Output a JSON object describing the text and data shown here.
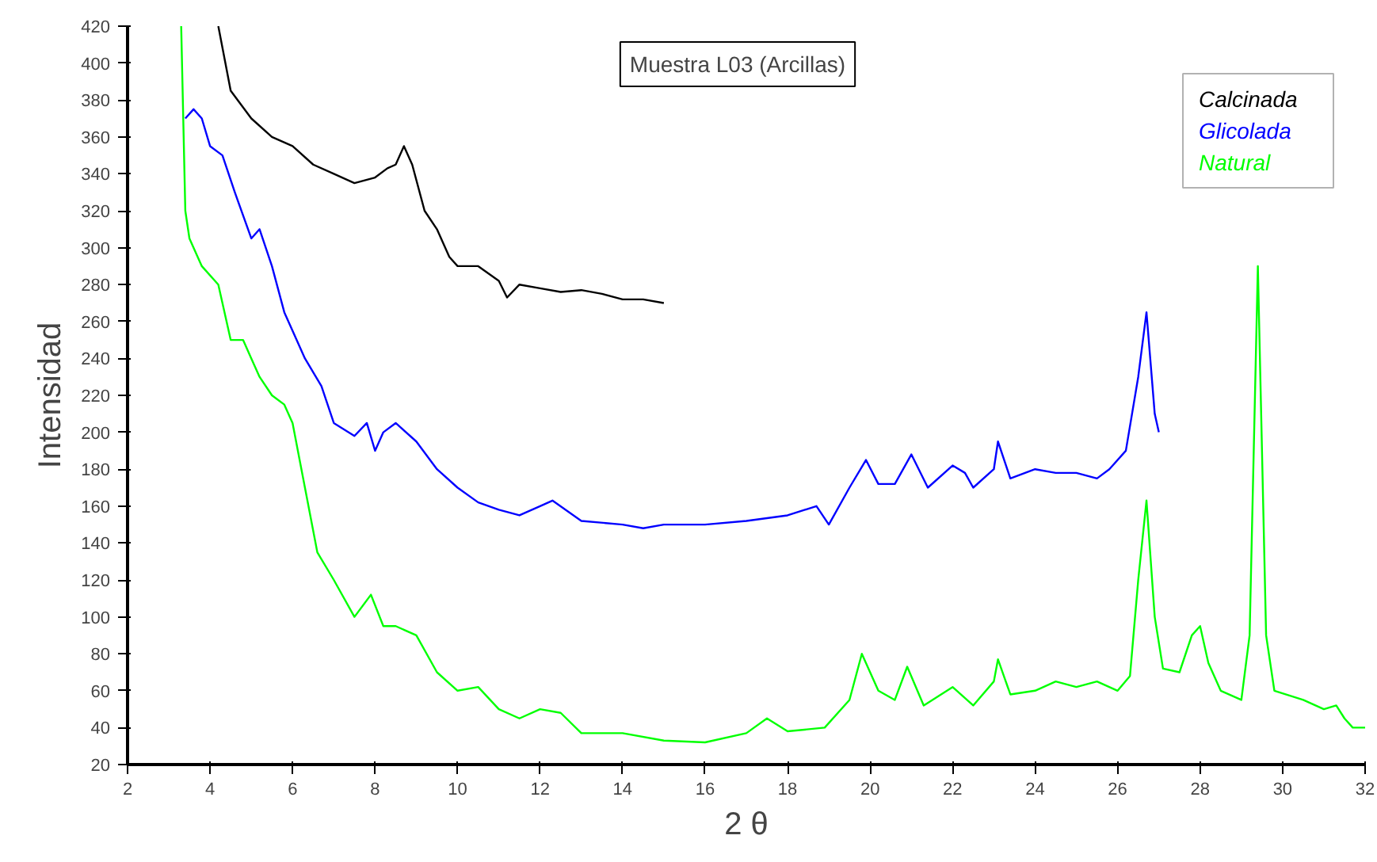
{
  "chart_data": {
    "type": "line",
    "title": "Muestra L03 (Arcillas)",
    "xlabel": "2 θ",
    "ylabel": "Intensidad",
    "xlim": [
      2,
      32
    ],
    "ylim": [
      20,
      420
    ],
    "xticks": [
      2,
      4,
      6,
      8,
      10,
      12,
      14,
      16,
      18,
      20,
      22,
      24,
      26,
      28,
      30,
      32
    ],
    "yticks": [
      20,
      40,
      60,
      80,
      100,
      120,
      140,
      160,
      180,
      200,
      220,
      240,
      260,
      280,
      300,
      320,
      340,
      360,
      380,
      400,
      420
    ],
    "grid": false,
    "legend": "top right",
    "marker": "none",
    "line_style": "solid",
    "series": [
      {
        "name": "Calcinada",
        "color": "#000000",
        "x": [
          4.2,
          4.5,
          5,
          5.5,
          6,
          6.5,
          7,
          7.5,
          8,
          8.3,
          8.5,
          8.7,
          8.9,
          9.2,
          9.5,
          9.8,
          10,
          10.5,
          11,
          11.2,
          11.5,
          12,
          12.5,
          13,
          13.5,
          14,
          14.5,
          15
        ],
        "values": [
          420,
          385,
          370,
          360,
          355,
          345,
          340,
          335,
          338,
          343,
          345,
          355,
          345,
          320,
          310,
          295,
          290,
          290,
          282,
          273,
          280,
          278,
          276,
          277,
          275,
          272,
          272,
          270
        ]
      },
      {
        "name": "Glicolada",
        "color": "#0000ff",
        "x": [
          3.4,
          3.6,
          3.8,
          4,
          4.3,
          4.6,
          5,
          5.2,
          5.5,
          5.8,
          6,
          6.3,
          6.7,
          7,
          7.5,
          7.8,
          8,
          8.2,
          8.5,
          9,
          9.5,
          10,
          10.5,
          11,
          11.5,
          12,
          12.3,
          13,
          14,
          14.5,
          15,
          16,
          17,
          18,
          18.7,
          19,
          19.5,
          19.9,
          20.2,
          20.6,
          21,
          21.4,
          22,
          22.3,
          22.5,
          23,
          23.1,
          23.4,
          24,
          24.5,
          25,
          25.5,
          25.8,
          26.2,
          26.5,
          26.7,
          26.9,
          27
        ],
        "values": [
          370,
          375,
          370,
          355,
          350,
          330,
          305,
          310,
          290,
          265,
          255,
          240,
          225,
          205,
          198,
          205,
          190,
          200,
          205,
          195,
          180,
          170,
          162,
          158,
          155,
          160,
          163,
          152,
          150,
          148,
          150,
          150,
          152,
          155,
          160,
          150,
          170,
          185,
          172,
          172,
          188,
          170,
          182,
          178,
          170,
          180,
          195,
          175,
          180,
          178,
          178,
          175,
          180,
          190,
          230,
          265,
          210,
          200
        ]
      },
      {
        "name": "Natural",
        "color": "#00ff00",
        "x": [
          3.3,
          3.4,
          3.5,
          3.8,
          4.2,
          4.5,
          4.8,
          5,
          5.2,
          5.5,
          5.8,
          6,
          6.3,
          6.6,
          7,
          7.5,
          7.9,
          8.2,
          8.5,
          9,
          9.5,
          10,
          10.5,
          11,
          11.5,
          12,
          12.5,
          13,
          14,
          15,
          16,
          17,
          17.5,
          18,
          18.9,
          19.5,
          19.8,
          20.2,
          20.6,
          20.9,
          21.3,
          22,
          22.5,
          23,
          23.1,
          23.4,
          24,
          24.5,
          25,
          25.5,
          26,
          26.3,
          26.5,
          26.7,
          26.9,
          27.1,
          27.5,
          27.8,
          28,
          28.2,
          28.5,
          29,
          29.2,
          29.4,
          29.6,
          29.8,
          30.5,
          31,
          31.3,
          31.5,
          31.7,
          32
        ],
        "values": [
          420,
          320,
          305,
          290,
          280,
          250,
          250,
          240,
          230,
          220,
          215,
          205,
          170,
          135,
          120,
          100,
          112,
          95,
          95,
          90,
          70,
          60,
          62,
          50,
          45,
          50,
          48,
          37,
          37,
          33,
          32,
          37,
          45,
          38,
          40,
          55,
          80,
          60,
          55,
          73,
          52,
          62,
          52,
          65,
          77,
          58,
          60,
          65,
          62,
          65,
          60,
          68,
          120,
          163,
          100,
          72,
          70,
          90,
          95,
          75,
          60,
          55,
          90,
          290,
          90,
          60,
          55,
          50,
          52,
          45,
          40,
          40
        ]
      }
    ]
  }
}
